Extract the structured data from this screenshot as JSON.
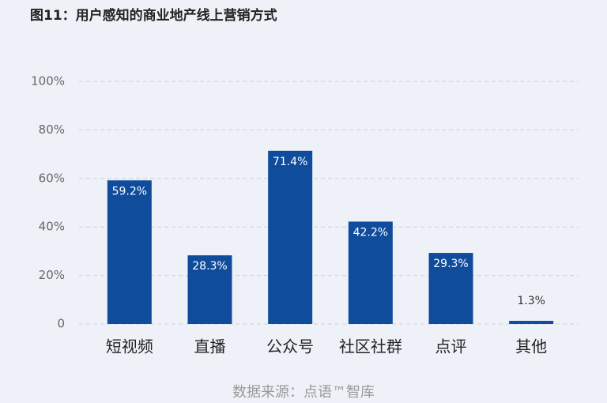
{
  "chart_data": {
    "type": "bar",
    "title": "图11：用户感知的商业地产线上营销方式",
    "categories": [
      "短视频",
      "直播",
      "公众号",
      "社区社群",
      "点评",
      "其他"
    ],
    "values": [
      59.2,
      28.3,
      71.4,
      42.2,
      29.3,
      1.3
    ],
    "value_labels": [
      "59.2%",
      "28.3%",
      "71.4%",
      "42.2%",
      "29.3%",
      "1.3%"
    ],
    "color": "#0f4c9c",
    "ylim": [
      0,
      100
    ],
    "yticks": [
      0,
      {
        "value": 20,
        "label": "20%"
      },
      {
        "value": 40,
        "label": "40%"
      },
      {
        "value": 60,
        "label": "60%"
      },
      {
        "value": 80,
        "label": "80%"
      },
      {
        "value": 100,
        "label": "100%"
      }
    ],
    "grid": true,
    "source": "数据来源：点语™智库"
  }
}
